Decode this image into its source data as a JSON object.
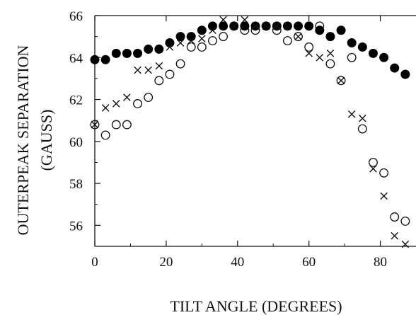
{
  "chart_data": {
    "type": "scatter",
    "title": "",
    "xlabel": "TILT ANGLE (DEGREES)",
    "ylabel_line1": "OUTERPEAK SEPARATION",
    "ylabel_line2": "(GAUSS)",
    "xlim": [
      0,
      90
    ],
    "ylim": [
      55,
      66
    ],
    "x_ticks": [
      0,
      20,
      40,
      60,
      80
    ],
    "y_ticks": [
      56,
      58,
      60,
      62,
      64,
      66
    ],
    "x_tick_labels": [
      "0",
      "20",
      "40",
      "60",
      "80"
    ],
    "y_tick_labels": [
      "56",
      "58",
      "60",
      "62",
      "64",
      "66"
    ],
    "grid": false,
    "series": [
      {
        "marker": "filled-circle",
        "points": [
          [
            0,
            63.9
          ],
          [
            3,
            63.9
          ],
          [
            6,
            64.2
          ],
          [
            9,
            64.2
          ],
          [
            12,
            64.2
          ],
          [
            15,
            64.4
          ],
          [
            18,
            64.4
          ],
          [
            21,
            64.7
          ],
          [
            24,
            65.0
          ],
          [
            27,
            65.0
          ],
          [
            30,
            65.3
          ],
          [
            33,
            65.5
          ],
          [
            36,
            65.5
          ],
          [
            39,
            65.5
          ],
          [
            42,
            65.5
          ],
          [
            45,
            65.5
          ],
          [
            48,
            65.5
          ],
          [
            51,
            65.5
          ],
          [
            54,
            65.5
          ],
          [
            57,
            65.5
          ],
          [
            60,
            65.5
          ],
          [
            63,
            65.3
          ],
          [
            66,
            65.0
          ],
          [
            69,
            65.3
          ],
          [
            72,
            64.7
          ],
          [
            75,
            64.5
          ],
          [
            78,
            64.2
          ],
          [
            81,
            64.0
          ],
          [
            84,
            63.5
          ],
          [
            87,
            63.2
          ]
        ]
      },
      {
        "marker": "cross",
        "points": [
          [
            0,
            60.8
          ],
          [
            3,
            61.6
          ],
          [
            6,
            61.8
          ],
          [
            9,
            62.1
          ],
          [
            12,
            63.4
          ],
          [
            15,
            63.4
          ],
          [
            18,
            63.6
          ],
          [
            21,
            64.5
          ],
          [
            24,
            64.7
          ],
          [
            27,
            64.8
          ],
          [
            30,
            64.9
          ],
          [
            33,
            65.3
          ],
          [
            36,
            65.8
          ],
          [
            39,
            65.5
          ],
          [
            42,
            65.8
          ],
          [
            45,
            65.5
          ],
          [
            48,
            65.5
          ],
          [
            51,
            65.5
          ],
          [
            54,
            65.5
          ],
          [
            57,
            65.0
          ],
          [
            60,
            64.2
          ],
          [
            63,
            64.0
          ],
          [
            66,
            64.2
          ],
          [
            69,
            62.9
          ],
          [
            72,
            61.3
          ],
          [
            75,
            61.1
          ],
          [
            78,
            58.7
          ],
          [
            81,
            57.4
          ],
          [
            84,
            55.5
          ],
          [
            87,
            55.1
          ]
        ]
      },
      {
        "marker": "open-circle",
        "points": [
          [
            0,
            60.8
          ],
          [
            3,
            60.3
          ],
          [
            6,
            60.8
          ],
          [
            9,
            60.8
          ],
          [
            12,
            61.8
          ],
          [
            15,
            62.1
          ],
          [
            18,
            62.9
          ],
          [
            21,
            63.2
          ],
          [
            24,
            63.7
          ],
          [
            27,
            64.5
          ],
          [
            30,
            64.5
          ],
          [
            33,
            64.8
          ],
          [
            36,
            65.0
          ],
          [
            39,
            65.5
          ],
          [
            42,
            65.3
          ],
          [
            45,
            65.3
          ],
          [
            48,
            65.5
          ],
          [
            51,
            65.3
          ],
          [
            54,
            64.8
          ],
          [
            57,
            65.0
          ],
          [
            60,
            64.5
          ],
          [
            63,
            65.5
          ],
          [
            66,
            63.7
          ],
          [
            69,
            62.9
          ],
          [
            72,
            64.0
          ],
          [
            75,
            60.6
          ],
          [
            78,
            59.0
          ],
          [
            81,
            58.5
          ],
          [
            84,
            56.4
          ],
          [
            87,
            56.2
          ]
        ]
      }
    ]
  }
}
